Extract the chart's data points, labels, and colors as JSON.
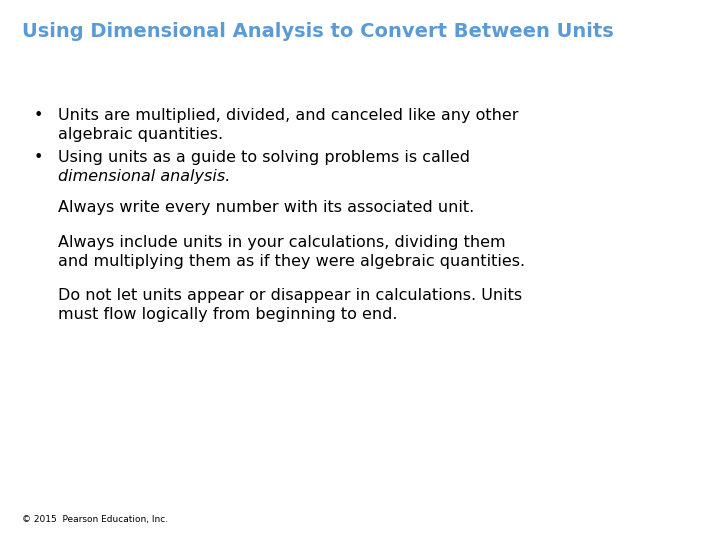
{
  "title": "Using Dimensional Analysis to Convert Between Units",
  "title_color": "#5b9bd5",
  "title_fontsize": 14,
  "background_color": "#ffffff",
  "bullet1_line1": "Units are multiplied, divided, and canceled like any other",
  "bullet1_line2": "algebraic quantities.",
  "bullet2_line1": "Using units as a guide to solving problems is called",
  "bullet2_line2_italic": "dimensional analysis.",
  "para1": "Always write every number with its associated unit.",
  "para2_line1": "Always include units in your calculations, dividing them",
  "para2_line2": "and multiplying them as if they were algebraic quantities.",
  "para3_line1": "Do not let units appear or disappear in calculations. Units",
  "para3_line2": "must flow logically from beginning to end.",
  "footer": "© 2015  Pearson Education, Inc.",
  "text_color": "#000000",
  "footer_color": "#000000",
  "main_fontsize": 11.5,
  "footer_fontsize": 6.5
}
